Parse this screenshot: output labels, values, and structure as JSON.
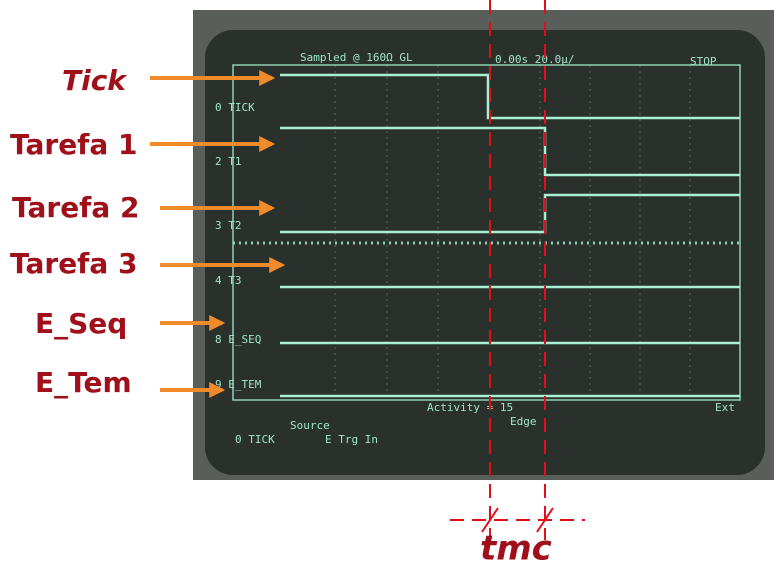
{
  "labels": [
    "Tick",
    "Tarefa 1",
    "Tarefa 2",
    "Tarefa 3",
    "E_Seq",
    "E_Tem"
  ],
  "annotation": "tmc",
  "screen": {
    "header": "Sampled @ 160Ω GL",
    "timebase": "0.00s 20.0μ/",
    "status": "STOP",
    "channels": [
      "0 TICK",
      "2 T1",
      "3 T2",
      "4 T3",
      "8 E_SEQ",
      "9 E_TEM"
    ],
    "activity": "Activity = 15",
    "source": "Source",
    "source_value": "0 TICK",
    "trigger": "E Trg In",
    "edge": "Edge",
    "ext": "Ext"
  }
}
